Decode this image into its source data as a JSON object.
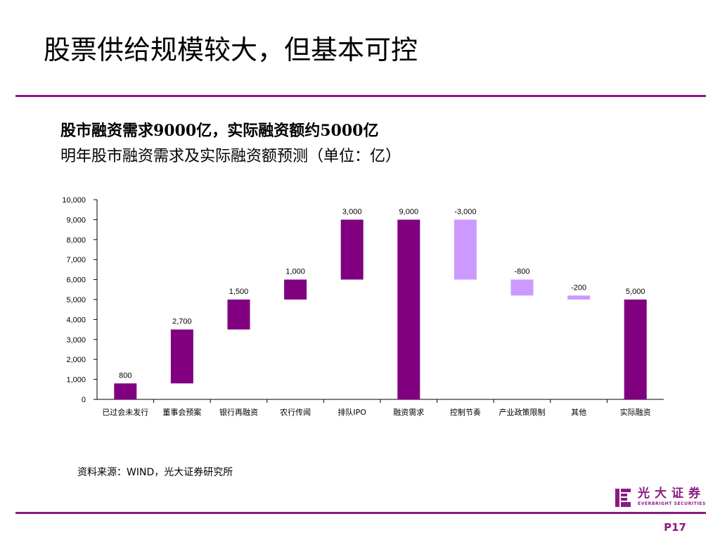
{
  "slide": {
    "title": "股票供给规模较大，但基本可控",
    "headline": "股市融资需求9000亿，实际融资额约5000亿",
    "subtitle": "明年股市融资需求及实际融资额预测（单位：亿）",
    "source": "资料来源：WIND，光大证券研究所",
    "page_number": "P17",
    "accent_color": "#8B1A84"
  },
  "logo": {
    "name_cn": "光大证券",
    "name_en": "EVERBRIGHT SECURITIES",
    "icon": "everbright-logo-icon",
    "color": "#8B1A84"
  },
  "chart_data": {
    "type": "bar",
    "subtype": "waterfall",
    "categories": [
      "已过会未发行",
      "董事会预案",
      "银行再融资",
      "农行传闻",
      "排队IPO",
      "融资需求",
      "控制节奏",
      "产业政策限制",
      "其他",
      "实际融资"
    ],
    "bars": [
      {
        "start": 0,
        "end": 800,
        "label": "800",
        "kind": "positive"
      },
      {
        "start": 800,
        "end": 3500,
        "label": "2,700",
        "kind": "positive"
      },
      {
        "start": 3500,
        "end": 5000,
        "label": "1,500",
        "kind": "positive"
      },
      {
        "start": 5000,
        "end": 6000,
        "label": "1,000",
        "kind": "positive"
      },
      {
        "start": 6000,
        "end": 9000,
        "label": "3,000",
        "kind": "positive"
      },
      {
        "start": 0,
        "end": 9000,
        "label": "9,000",
        "kind": "total"
      },
      {
        "start": 9000,
        "end": 6000,
        "label": "-3,000",
        "kind": "negative"
      },
      {
        "start": 6000,
        "end": 5200,
        "label": "-800",
        "kind": "negative"
      },
      {
        "start": 5200,
        "end": 5000,
        "label": "-200",
        "kind": "negative"
      },
      {
        "start": 0,
        "end": 5000,
        "label": "5,000",
        "kind": "total"
      }
    ],
    "ylim": [
      0,
      10000
    ],
    "yticks": [
      "0",
      "1,000",
      "2,000",
      "3,000",
      "4,000",
      "5,000",
      "6,000",
      "7,000",
      "8,000",
      "9,000",
      "10,000"
    ],
    "ytick_values": [
      0,
      1000,
      2000,
      3000,
      4000,
      5000,
      6000,
      7000,
      8000,
      9000,
      10000
    ],
    "grid": false,
    "legend": "none",
    "colors": {
      "positive": "#800080",
      "total": "#800080",
      "negative": "#CC99FF"
    }
  }
}
